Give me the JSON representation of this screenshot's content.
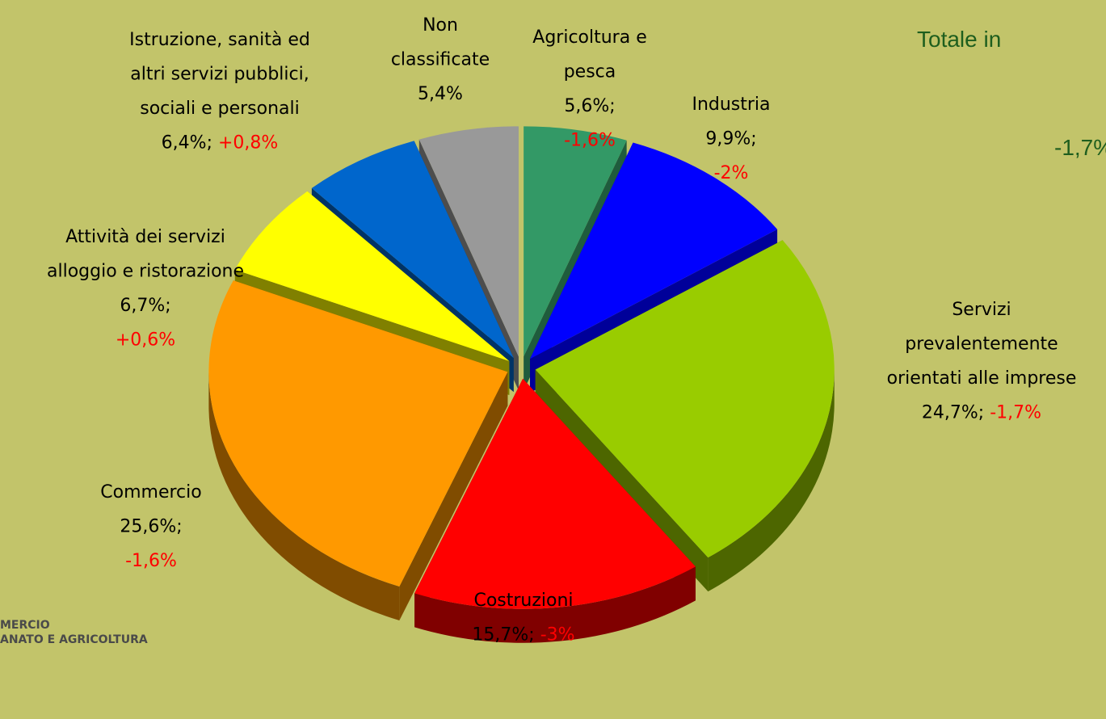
{
  "chart_data": {
    "type": "pie3d",
    "title": "Totale in",
    "total_change": -1.7,
    "total_change_label": "-1,7%",
    "logo": [
      "MERCIO",
      "ANATO E AGRICOLTURA"
    ],
    "categories": [
      "Agricoltura e\npesca",
      "Industria",
      "Servizi\nprevalentemente\norientati alle imprese",
      "Costruzioni",
      "Commercio",
      "Attività dei servizi\nalloggio e ristorazione",
      "Istruzione, sanità ed\naltri servizi pubblici,\nsociali e personali",
      "Non\nclassificate"
    ],
    "values": [
      5.6,
      9.9,
      24.7,
      15.7,
      25.6,
      6.7,
      6.4,
      5.4
    ],
    "value_labels": [
      "5,6%;",
      "9,9%;",
      "24,7%;",
      "15,7%;",
      "25,6%;",
      "6,7%;",
      "6,4%;",
      "5,4%"
    ],
    "changes": [
      -1.6,
      -2,
      -1.7,
      -3,
      -1.6,
      0.6,
      0.8,
      null
    ],
    "change_labels": [
      "-1,6%",
      "-2%",
      "-1,7%",
      "-3%",
      "-1,6%",
      "+0,6%",
      "+0,8%",
      null
    ],
    "colors": [
      "#339966",
      "#0000ff",
      "#99cc00",
      "#ff0000",
      "#ff9900",
      "#ffff00",
      "#0066cc",
      "#999999"
    ],
    "side_colors": [
      "#1f5c3d",
      "#000099",
      "#4d6600",
      "#800000",
      "#804c00",
      "#808000",
      "#003366",
      "#4d4d4d"
    ]
  }
}
